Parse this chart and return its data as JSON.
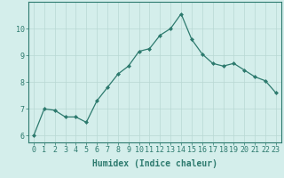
{
  "x": [
    0,
    1,
    2,
    3,
    4,
    5,
    6,
    7,
    8,
    9,
    10,
    11,
    12,
    13,
    14,
    15,
    16,
    17,
    18,
    19,
    20,
    21,
    22,
    23
  ],
  "y": [
    6.0,
    7.0,
    6.95,
    6.7,
    6.7,
    6.5,
    7.3,
    7.8,
    8.3,
    8.6,
    9.15,
    9.25,
    9.75,
    10.0,
    10.55,
    9.6,
    9.05,
    8.7,
    8.6,
    8.7,
    8.45,
    8.2,
    8.05,
    7.6
  ],
  "line_color": "#2d7a6e",
  "marker": "D",
  "marker_size": 2.0,
  "bg_color": "#d4eeeb",
  "grid_color": "#b8d8d4",
  "xlabel": "Humidex (Indice chaleur)",
  "xlabel_fontsize": 7,
  "tick_fontsize": 6,
  "ylim": [
    5.75,
    11.0
  ],
  "xlim": [
    -0.5,
    23.5
  ],
  "yticks": [
    6,
    7,
    8,
    9,
    10
  ],
  "xticks": [
    0,
    1,
    2,
    3,
    4,
    5,
    6,
    7,
    8,
    9,
    10,
    11,
    12,
    13,
    14,
    15,
    16,
    17,
    18,
    19,
    20,
    21,
    22,
    23
  ]
}
